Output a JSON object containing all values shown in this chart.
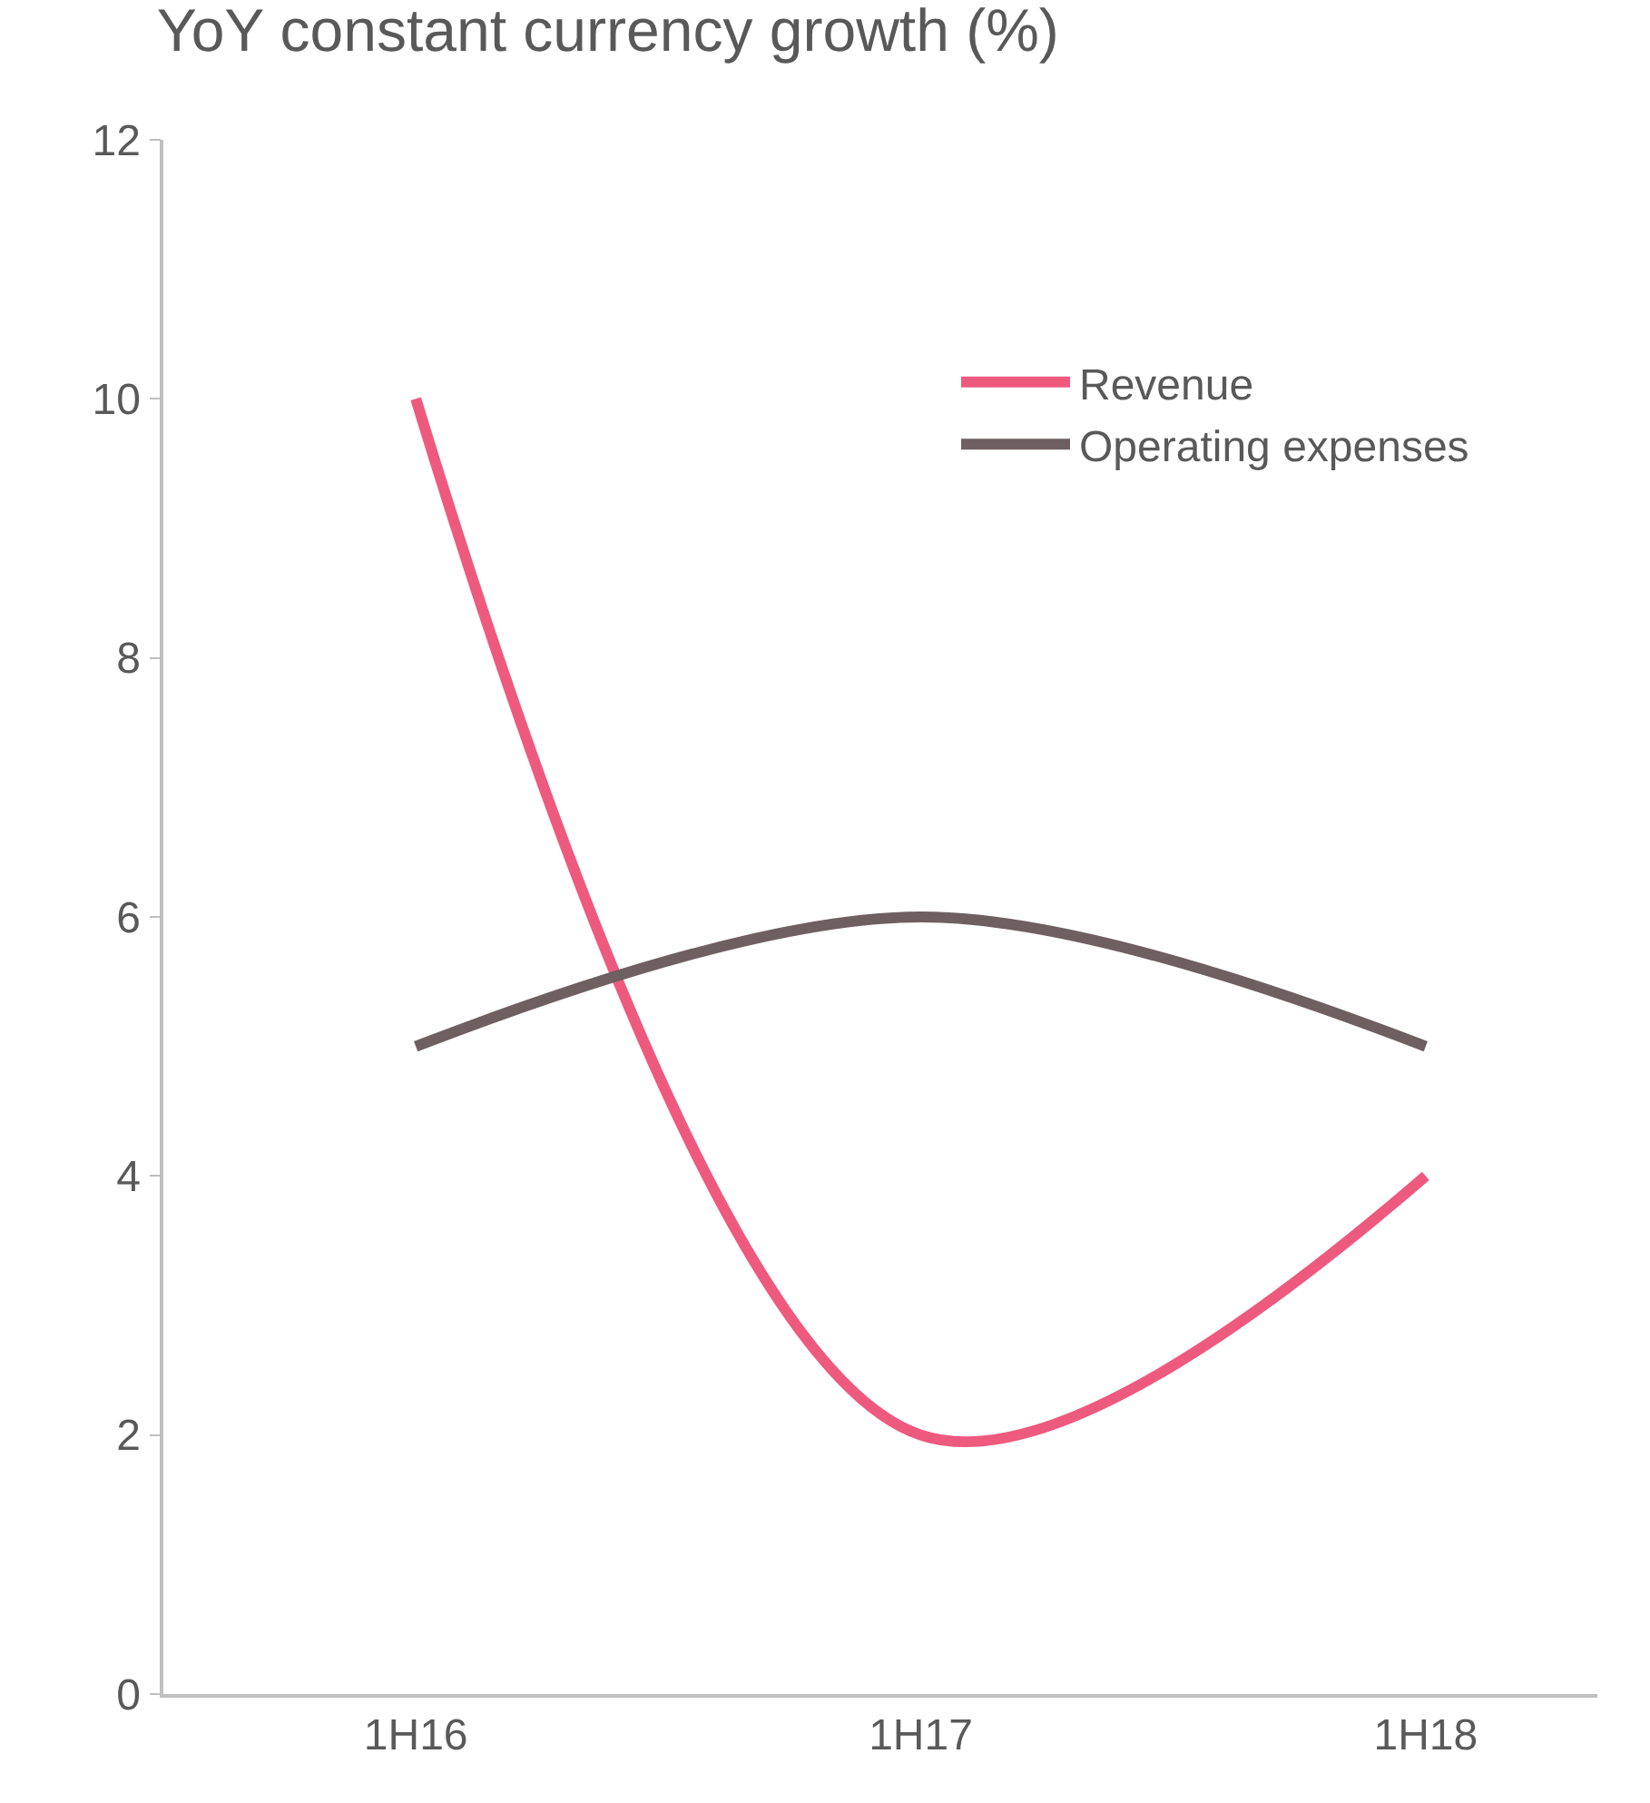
{
  "chart_data": {
    "type": "line",
    "title": "YoY constant currency growth (%)",
    "categories": [
      "1H16",
      "1H17",
      "1H18"
    ],
    "series": [
      {
        "name": "Revenue",
        "color": "#ee5a7e",
        "values": [
          10,
          2,
          4
        ]
      },
      {
        "name": "Operating expenses",
        "color": "#6e5f60",
        "values": [
          5,
          6,
          5
        ]
      }
    ],
    "ylim": [
      0,
      12
    ],
    "yticks": [
      0,
      2,
      4,
      6,
      8,
      10,
      12
    ],
    "legend": "top right",
    "marker": "none",
    "line_style": "solid"
  }
}
